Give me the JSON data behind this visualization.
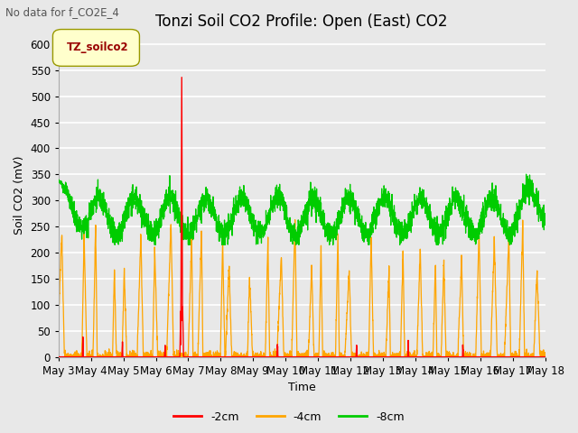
{
  "title": "Tonzi Soil CO2 Profile: Open (East) CO2",
  "subtitle": "No data for f_CO2E_4",
  "ylabel": "Soil CO2 (mV)",
  "xlabel": "Time",
  "legend_label": "TZ_soilco2",
  "ylim": [
    0,
    620
  ],
  "yticks": [
    0,
    50,
    100,
    150,
    200,
    250,
    300,
    350,
    400,
    450,
    500,
    550,
    600
  ],
  "xtick_labels": [
    "May 3",
    "May 4",
    "May 5",
    "May 6",
    "May 7",
    "May 8",
    "May 9",
    "May 10",
    "May 11",
    "May 12",
    "May 13",
    "May 14",
    "May 15",
    "May 16",
    "May 17",
    "May 18"
  ],
  "color_2cm": "#ff0000",
  "color_4cm": "#ffa500",
  "color_8cm": "#00cc00",
  "legend_items": [
    "-2cm",
    "-4cm",
    "-8cm"
  ],
  "background_color": "#e8e8e8",
  "plot_bg_color": "#e8e8e8",
  "grid_color": "#ffffff",
  "title_fontsize": 12,
  "axis_fontsize": 9,
  "tick_fontsize": 8.5
}
